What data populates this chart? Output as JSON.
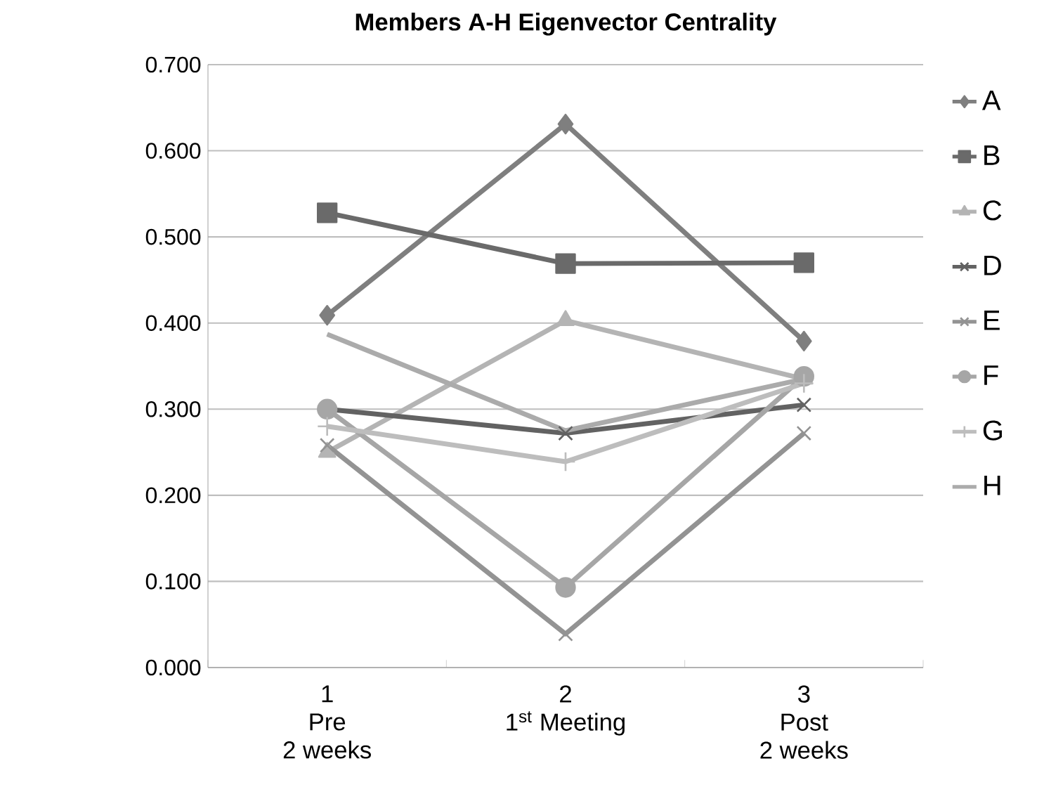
{
  "chart_data": {
    "type": "line",
    "title": "Members A-H Eigenvector Centrality",
    "categories": [
      "1\nPre\n2 weeks",
      "2\n1$^{st}$ Meeting",
      "3\nPost\n2 weeks"
    ],
    "series": [
      {
        "name": "A",
        "color": "#7f7f7f",
        "marker": "diamond",
        "values": [
          0.409,
          0.631,
          0.379
        ]
      },
      {
        "name": "B",
        "color": "#6a6a6a",
        "marker": "square",
        "values": [
          0.528,
          0.469,
          0.47
        ]
      },
      {
        "name": "C",
        "color": "#b4b4b4",
        "marker": "triangle",
        "values": [
          0.25,
          0.403,
          0.335
        ]
      },
      {
        "name": "D",
        "color": "#626262",
        "marker": "cross",
        "values": [
          0.3,
          0.272,
          0.305
        ]
      },
      {
        "name": "E",
        "color": "#939393",
        "marker": "cross",
        "values": [
          0.258,
          0.039,
          0.272
        ]
      },
      {
        "name": "F",
        "color": "#a6a6a6",
        "marker": "circle",
        "values": [
          0.3,
          0.093,
          0.338
        ]
      },
      {
        "name": "G",
        "color": "#bdbdbd",
        "marker": "plus",
        "values": [
          0.28,
          0.239,
          0.33
        ]
      },
      {
        "name": "H",
        "color": "#ababab",
        "marker": "none",
        "values": [
          0.387,
          0.275,
          0.335
        ]
      }
    ],
    "ylim": [
      0,
      0.7
    ],
    "yticks": [
      {
        "value": 0,
        "label": "0.000"
      },
      {
        "value": 0.1,
        "label": "0.100"
      },
      {
        "value": 0.2,
        "label": "0.200"
      },
      {
        "value": 0.3,
        "label": "0.300"
      },
      {
        "value": 0.4,
        "label": "0.400"
      },
      {
        "value": 0.5,
        "label": "0.500"
      },
      {
        "value": 0.6,
        "label": "0.600"
      },
      {
        "value": 0.7,
        "label": "0.700"
      }
    ],
    "grid": "y",
    "legend": "right",
    "line_style": "solid"
  }
}
